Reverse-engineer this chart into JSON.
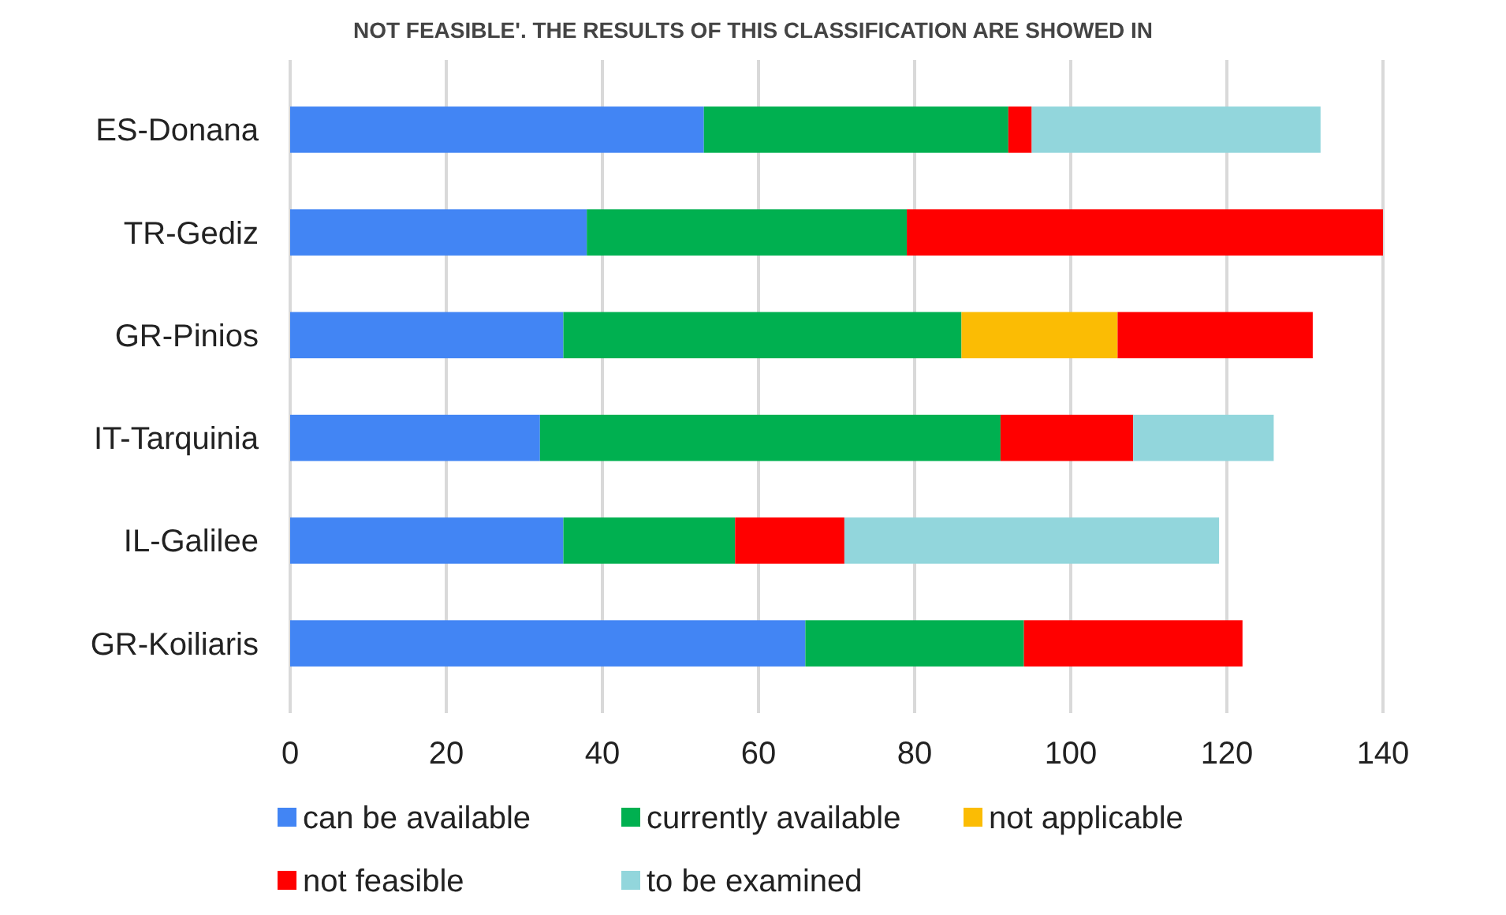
{
  "chart_data": {
    "type": "bar",
    "orientation": "horizontal",
    "stacked": true,
    "annotations": [
      "NOT FEASIBLE'. THE RESULTS OF THIS CLASSIFICATION ARE SHOWED IN"
    ],
    "categories": [
      "ES-Donana",
      "TR-Gediz",
      "GR-Pinios",
      "IT-Tarquinia",
      "IL-Galilee",
      "GR-Koiliaris"
    ],
    "series": [
      {
        "name": "can be available",
        "color": "#4285f4",
        "values": [
          53,
          38,
          35,
          32,
          35,
          66
        ]
      },
      {
        "name": "currently available",
        "color": "#00b050",
        "values": [
          39,
          41,
          51,
          59,
          22,
          28
        ]
      },
      {
        "name": "not applicable",
        "color": "#fbbc04",
        "values": [
          null,
          null,
          20,
          null,
          null,
          null
        ]
      },
      {
        "name": "not feasible",
        "color": "#ff0000",
        "values": [
          3,
          61,
          25,
          17,
          14,
          28
        ]
      },
      {
        "name": "to be examined",
        "color": "#92d6dc",
        "values": [
          37,
          null,
          null,
          18,
          48,
          null
        ]
      }
    ],
    "xlim": [
      0,
      140
    ],
    "xticks": [
      0,
      20,
      40,
      60,
      80,
      100,
      120,
      140
    ],
    "grid": "x",
    "legend": "bottom"
  }
}
